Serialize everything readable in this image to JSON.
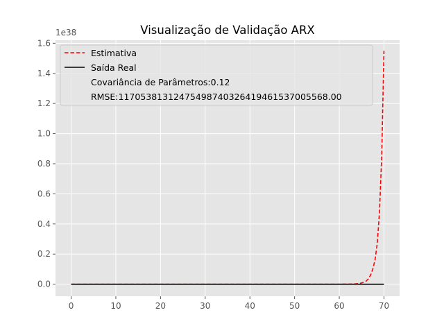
{
  "chart_data": {
    "type": "line",
    "title": "Visualização de Validação ARX",
    "xlabel": "",
    "ylabel": "",
    "y_offset_label": "1e38",
    "xlim": [
      -3.5,
      73.5
    ],
    "ylim": [
      -0.08,
      1.62
    ],
    "x_ticks": [
      0,
      10,
      20,
      30,
      40,
      50,
      60,
      70
    ],
    "x_tick_labels": [
      "0",
      "10",
      "20",
      "30",
      "40",
      "50",
      "60",
      "70"
    ],
    "y_ticks": [
      0.0,
      0.2,
      0.4,
      0.6,
      0.8,
      1.0,
      1.2,
      1.4,
      1.6
    ],
    "y_tick_labels": [
      "0.0",
      "0.2",
      "0.4",
      "0.6",
      "0.8",
      "1.0",
      "1.2",
      "1.4",
      "1.6"
    ],
    "grid": true,
    "legend_position": "top-left",
    "series": [
      {
        "name": "Estimativa",
        "color": "#ff0000",
        "style": "dashed",
        "x": [
          0,
          10,
          20,
          30,
          40,
          50,
          60,
          63,
          64,
          65,
          66,
          66.5,
          67,
          67.5,
          68,
          68.5,
          69,
          69.5,
          70
        ],
        "y": [
          0,
          0,
          0,
          0,
          0,
          0,
          0,
          0.001,
          0.003,
          0.008,
          0.02,
          0.035,
          0.06,
          0.1,
          0.16,
          0.27,
          0.48,
          0.85,
          1.55
        ]
      },
      {
        "name": "Saída Real",
        "color": "#000000",
        "style": "solid",
        "x": [
          0,
          70
        ],
        "y": [
          0,
          0
        ]
      }
    ],
    "annotations": [
      "Covariância de Parâmetros:0.12",
      "RMSE:117053813124754987403264194615370055​68.00"
    ]
  }
}
